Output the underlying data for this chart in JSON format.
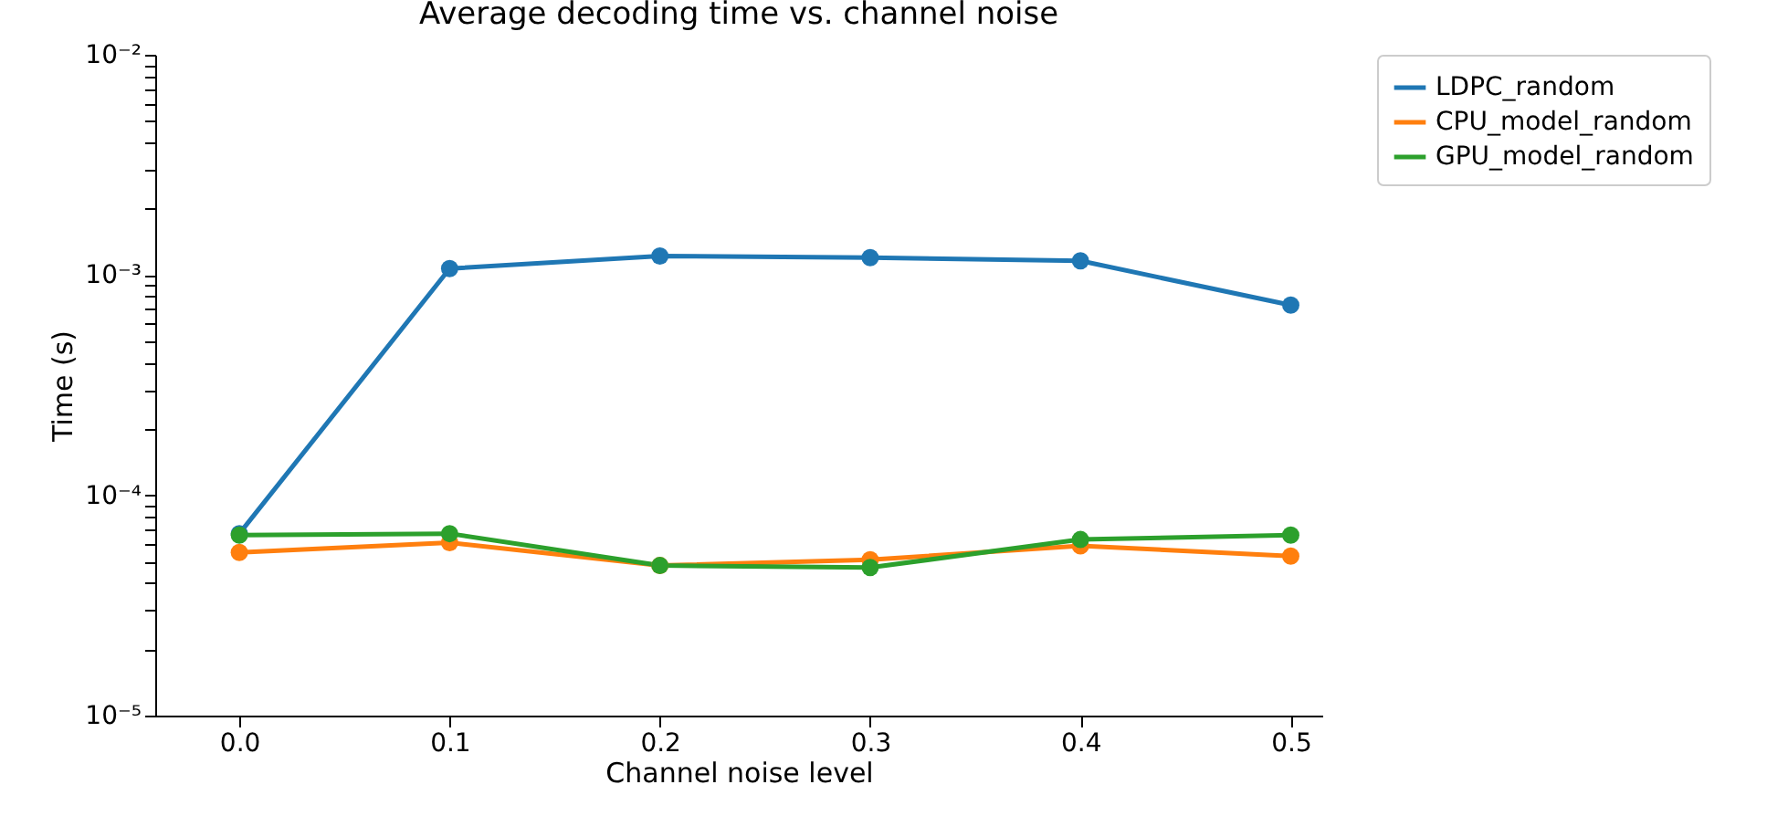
{
  "chart_data": {
    "type": "line",
    "title": "Average decoding time vs. channel noise",
    "xlabel": "Channel noise level",
    "ylabel": "Time (s)",
    "x": [
      0.0,
      0.1,
      0.2,
      0.3,
      0.4,
      0.5
    ],
    "series": [
      {
        "name": "LDPC_random",
        "color": "#1f77b4",
        "values": [
          6.7e-05,
          0.00107,
          0.00122,
          0.0012,
          0.00116,
          0.00073
        ]
      },
      {
        "name": "CPU_model_random",
        "color": "#ff7f0e",
        "values": [
          5.5e-05,
          6.1e-05,
          4.8e-05,
          5.1e-05,
          5.9e-05,
          5.3e-05
        ]
      },
      {
        "name": "GPU_model_random",
        "color": "#2ca02c",
        "values": [
          6.6e-05,
          6.7e-05,
          4.8e-05,
          4.7e-05,
          6.3e-05,
          6.6e-05
        ]
      }
    ],
    "log": "y",
    "xlim": [
      -0.04,
      0.515
    ],
    "ylim": [
      1e-05,
      0.01
    ],
    "xticks": [
      {
        "value": 0,
        "label": "0.0"
      },
      0.1,
      0.2,
      0.3,
      0.4,
      0.5
    ],
    "yticks": [
      {
        "value": 1e-05,
        "label": "10⁻⁵"
      },
      {
        "value": 2e-05,
        "label": null
      },
      {
        "value": 3e-05,
        "label": null
      },
      {
        "value": 4e-05,
        "label": null
      },
      {
        "value": 5e-05,
        "label": null
      },
      {
        "value": 6e-05,
        "label": null
      },
      {
        "value": 7e-05,
        "label": null
      },
      {
        "value": 8e-05,
        "label": null
      },
      {
        "value": 9e-05,
        "label": null
      },
      {
        "value": 0.0001,
        "label": "10⁻⁴"
      },
      {
        "value": 0.0002,
        "label": null
      },
      {
        "value": 0.0003,
        "label": null
      },
      {
        "value": 0.0004,
        "label": null
      },
      {
        "value": 0.0005,
        "label": null
      },
      {
        "value": 0.0006,
        "label": null
      },
      {
        "value": 0.0007,
        "label": null
      },
      {
        "value": 0.0008,
        "label": null
      },
      {
        "value": 0.0009,
        "label": null
      },
      {
        "value": 0.001,
        "label": "10⁻³"
      },
      {
        "value": 0.002,
        "label": null
      },
      {
        "value": 0.003,
        "label": null
      },
      {
        "value": 0.004,
        "label": null
      },
      {
        "value": 0.005,
        "label": null
      },
      {
        "value": 0.006,
        "label": null
      },
      {
        "value": 0.007,
        "label": null
      },
      {
        "value": 0.008,
        "label": null
      },
      {
        "value": 0.009,
        "label": null
      },
      {
        "value": 0.01,
        "label": "10⁻²"
      }
    ],
    "marker": "circle",
    "line_style": "solid",
    "grid": false,
    "legend": "top right"
  }
}
